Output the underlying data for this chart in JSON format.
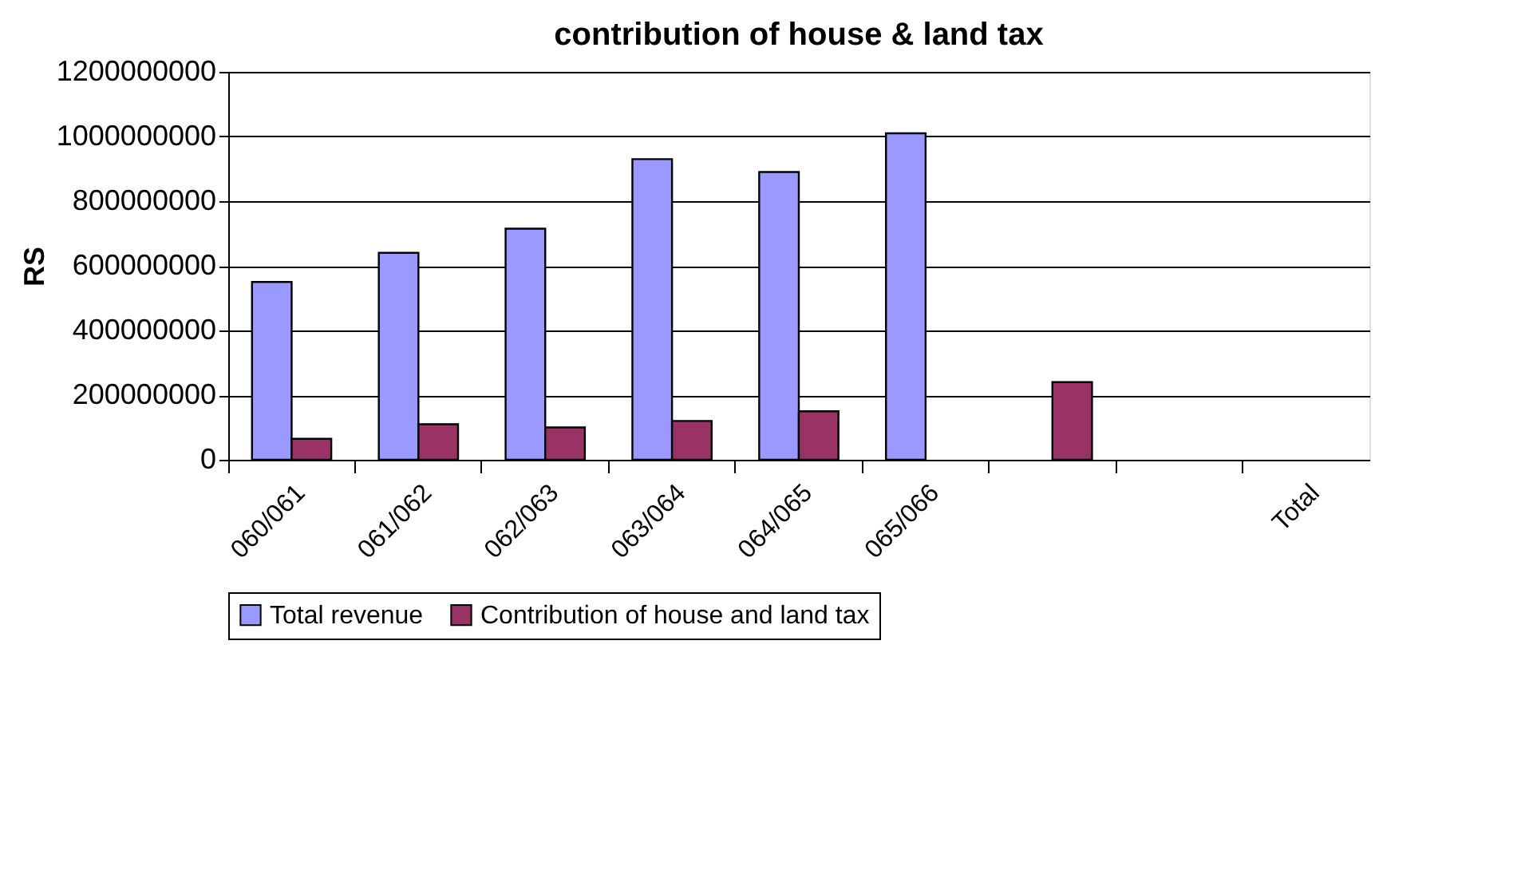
{
  "chart_data": {
    "type": "bar",
    "title": "contribution of house & land tax",
    "ylabel": "RS",
    "categories": [
      "060/061",
      "061/062",
      "062/063",
      "063/064",
      "064/065",
      "065/066",
      null,
      null,
      "Total"
    ],
    "series": [
      {
        "name": "Total revenue",
        "color": "#9999ff",
        "values": [
          550000000,
          640000000,
          715000000,
          930000000,
          890000000,
          1010000000,
          null,
          null,
          null
        ]
      },
      {
        "name": "Contribution of house and land tax",
        "color": "#993366",
        "values": [
          65000000,
          110000000,
          100000000,
          120000000,
          150000000,
          null,
          240000000,
          null,
          null
        ]
      }
    ],
    "ylim": [
      0,
      1200000000
    ],
    "yticks": [
      0,
      200000000,
      400000000,
      600000000,
      800000000,
      1000000000,
      1200000000
    ],
    "grid": "y",
    "legend": "bottom"
  }
}
